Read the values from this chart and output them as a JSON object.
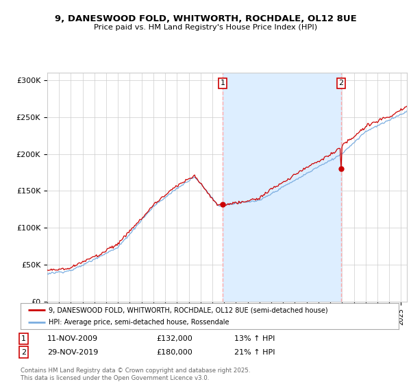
{
  "title": "9, DANESWOOD FOLD, WHITWORTH, ROCHDALE, OL12 8UE",
  "subtitle": "Price paid vs. HM Land Registry's House Price Index (HPI)",
  "ylabel_ticks": [
    "£0",
    "£50K",
    "£100K",
    "£150K",
    "£200K",
    "£250K",
    "£300K"
  ],
  "ylim": [
    0,
    310000
  ],
  "xlim_start": 1995.0,
  "xlim_end": 2025.5,
  "purchase1": {
    "date": 2009.87,
    "price": 132000,
    "label": "1",
    "text": "11-NOV-2009",
    "amount": "£132,000",
    "pct": "13% ↑ HPI"
  },
  "purchase2": {
    "date": 2019.92,
    "price": 180000,
    "label": "2",
    "text": "29-NOV-2019",
    "amount": "£180,000",
    "pct": "21% ↑ HPI"
  },
  "line1_color": "#cc0000",
  "line2_color": "#7aade0",
  "vline_color": "#ffaaaa",
  "fill_color": "#ddeeff",
  "grid_color": "#cccccc",
  "background_color": "#ffffff",
  "legend_line1": "9, DANESWOOD FOLD, WHITWORTH, ROCHDALE, OL12 8UE (semi-detached house)",
  "legend_line2": "HPI: Average price, semi-detached house, Rossendale",
  "footer": "Contains HM Land Registry data © Crown copyright and database right 2025.\nThis data is licensed under the Open Government Licence v3.0."
}
